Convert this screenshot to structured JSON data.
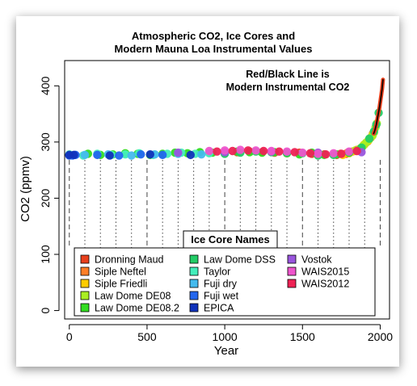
{
  "chart_data": {
    "type": "scatter",
    "title_lines": [
      "Atmospheric CO2, Ice Cores and",
      "Modern Mauna Loa Instrumental Values"
    ],
    "annotation_lines": [
      "Red/Black Line is",
      "Modern Instrumental CO2"
    ],
    "xlabel": "Year",
    "ylabel": "CO2 (ppmv)",
    "xlim": [
      -30,
      2060
    ],
    "ylim": [
      -15,
      445
    ],
    "x_ticks": [
      0,
      500,
      1000,
      1500,
      2000
    ],
    "y_ticks": [
      0,
      100,
      200,
      300,
      400
    ],
    "grid": false,
    "dashed_reference_lines": [
      0,
      100,
      200,
      300,
      400,
      500,
      600,
      700,
      800,
      900,
      1000,
      1100,
      1200,
      1300,
      1400,
      1500,
      1600,
      1700,
      1800,
      1900,
      2000
    ],
    "legend_title": "Ice Core Names",
    "legend_placement": "bottom",
    "series": [
      {
        "name": "Dronning Maud",
        "color": "#e8401c",
        "x": [
          1080,
          1160,
          1240,
          1320,
          1400,
          1480,
          1560,
          1640,
          1720,
          1780
        ],
        "y": [
          282,
          283,
          282,
          281,
          280,
          281,
          279,
          278,
          277,
          279
        ]
      },
      {
        "name": "Siple Neftel",
        "color": "#ff7f27",
        "x": [
          1745,
          1790,
          1820,
          1850,
          1880,
          1900,
          1920,
          1940,
          1953
        ],
        "y": [
          279,
          281,
          283,
          286,
          290,
          296,
          301,
          308,
          315
        ]
      },
      {
        "name": "Siple Friedli",
        "color": "#ffcc00",
        "x": [
          1760,
          1800,
          1835,
          1870,
          1895,
          1925,
          1950
        ],
        "y": [
          277,
          280,
          284,
          288,
          295,
          303,
          312
        ]
      },
      {
        "name": "Law Dome DE08",
        "color": "#aaee22",
        "x": [
          1840,
          1870,
          1890,
          1910,
          1930,
          1950,
          1960,
          1970,
          1978
        ],
        "y": [
          285,
          288,
          293,
          299,
          305,
          311,
          317,
          326,
          333
        ]
      },
      {
        "name": "Law Dome DE08.2",
        "color": "#33dd22",
        "x": [
          120,
          200,
          280,
          360,
          440,
          520,
          600,
          680,
          760,
          840,
          920,
          1000,
          1080,
          1160,
          1240,
          1320,
          1400,
          1480,
          1560,
          1640,
          1720,
          1800
        ],
        "y": [
          279,
          277,
          278,
          280,
          279,
          277,
          279,
          281,
          280,
          282,
          281,
          280,
          283,
          282,
          281,
          282,
          280,
          278,
          281,
          277,
          278,
          281
        ]
      },
      {
        "name": "Law Dome DSS",
        "color": "#22cc66",
        "x": [
          1000,
          1100,
          1200,
          1300,
          1400,
          1500,
          1600,
          1700,
          1800,
          1880,
          1930,
          1960,
          1975,
          1990
        ],
        "y": [
          279,
          281,
          283,
          282,
          281,
          280,
          276,
          277,
          282,
          290,
          306,
          319,
          331,
          352
        ]
      },
      {
        "name": "Taylor",
        "color": "#44eebb",
        "x": [
          0,
          90,
          180,
          270,
          360,
          450,
          540,
          630,
          720,
          810,
          900
        ],
        "y": [
          278,
          276,
          279,
          277,
          278,
          280,
          277,
          279,
          281,
          279,
          280
        ]
      },
      {
        "name": "Fuji dry",
        "color": "#44bbee",
        "x": [
          100,
          250,
          400,
          550,
          700,
          850
        ],
        "y": [
          277,
          278,
          276,
          278,
          279,
          278
        ]
      },
      {
        "name": "Fuji wet",
        "color": "#2266ee",
        "x": [
          0,
          20,
          40,
          180,
          320,
          460,
          600
        ],
        "y": [
          276,
          276,
          277,
          277,
          276,
          278,
          277
        ]
      },
      {
        "name": "EPICA",
        "color": "#1133bb",
        "x": [
          0,
          30,
          260,
          520,
          780
        ],
        "y": [
          277,
          277,
          276,
          278,
          277
        ]
      },
      {
        "name": "Vostok",
        "color": "#9955dd",
        "x": [
          700,
          1000,
          1300,
          1600,
          1880
        ],
        "y": [
          281,
          282,
          283,
          281,
          282
        ]
      },
      {
        "name": "WAIS2015",
        "color": "#ee55cc",
        "x": [
          900,
          1000,
          1100,
          1200,
          1300,
          1400,
          1500,
          1600,
          1700,
          1800
        ],
        "y": [
          284,
          285,
          286,
          285,
          284,
          283,
          281,
          279,
          280,
          283
        ]
      },
      {
        "name": "WAIS2012",
        "color": "#ee2255",
        "x": [
          950,
          1050,
          1150,
          1250,
          1350,
          1450,
          1550,
          1650,
          1750,
          1850
        ],
        "y": [
          283,
          284,
          285,
          284,
          283,
          282,
          280,
          278,
          279,
          284
        ]
      }
    ],
    "instrumental": {
      "outer_color": "#e8401c",
      "inner_color": "#000000",
      "x": [
        1958,
        1965,
        1975,
        1985,
        1995,
        2005,
        2012,
        2018
      ],
      "y": [
        315,
        320,
        331,
        346,
        361,
        380,
        394,
        411
      ]
    }
  }
}
